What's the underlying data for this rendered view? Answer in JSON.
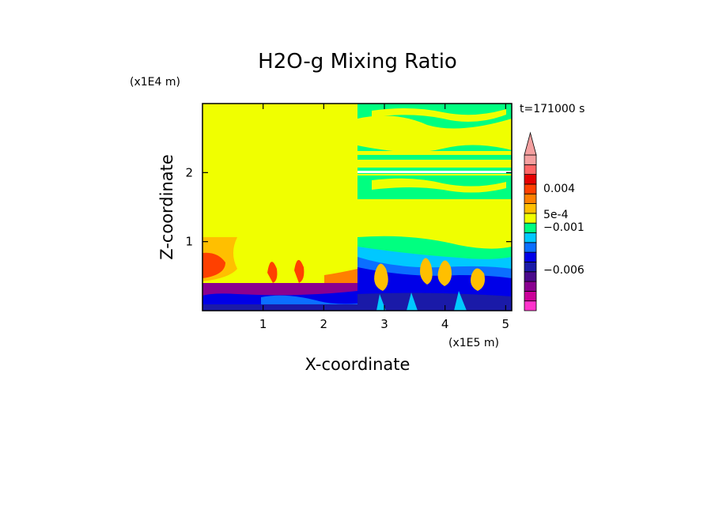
{
  "chart_data": {
    "type": "heatmap",
    "title": "H2O-g Mixing Ratio",
    "xlabel": "X-coordinate",
    "ylabel": "Z-coordinate",
    "x_unit": "(x1E5 m)",
    "y_unit": "(x1E4 m)",
    "time_label": "t=171000 s",
    "xlim": [
      0,
      5.1
    ],
    "ylim": [
      0,
      3.0
    ],
    "x_ticks": [
      "1",
      "2",
      "3",
      "4",
      "5"
    ],
    "y_ticks": [
      "1",
      "2"
    ],
    "colorbar": {
      "extend": "top",
      "labels": [
        "0.004",
        "5e-4",
        "−0.001",
        "−0.006"
      ],
      "colors": [
        "#ff33cc",
        "#cc0099",
        "#8a0090",
        "#4a0a8c",
        "#1a1aa8",
        "#0000e8",
        "#0b6fff",
        "#00c8ff",
        "#00ff80",
        "#f0ff00",
        "#ffbf00",
        "#ff8000",
        "#ff4000",
        "#e60000",
        "#ff6666",
        "#f4a0a0"
      ]
    }
  }
}
